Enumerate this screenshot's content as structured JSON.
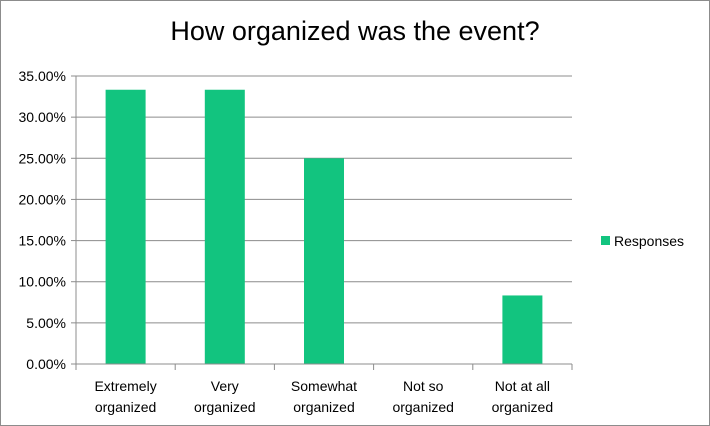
{
  "chart_data": {
    "type": "bar",
    "title": "How organized was the event?",
    "categories": [
      [
        "Extremely",
        "organized"
      ],
      [
        "Very",
        "organized"
      ],
      [
        "Somewhat",
        "organized"
      ],
      [
        "Not so",
        "organized"
      ],
      [
        "Not at all",
        "organized"
      ]
    ],
    "series": [
      {
        "name": "Responses",
        "values": [
          33.33,
          33.33,
          25.0,
          0.0,
          8.33
        ],
        "color": "#12c47f"
      }
    ],
    "ylim": [
      0,
      35
    ],
    "yticks": [
      "0.00%",
      "5.00%",
      "10.00%",
      "15.00%",
      "20.00%",
      "25.00%",
      "30.00%",
      "35.00%"
    ],
    "grid": true,
    "legend": "right"
  }
}
